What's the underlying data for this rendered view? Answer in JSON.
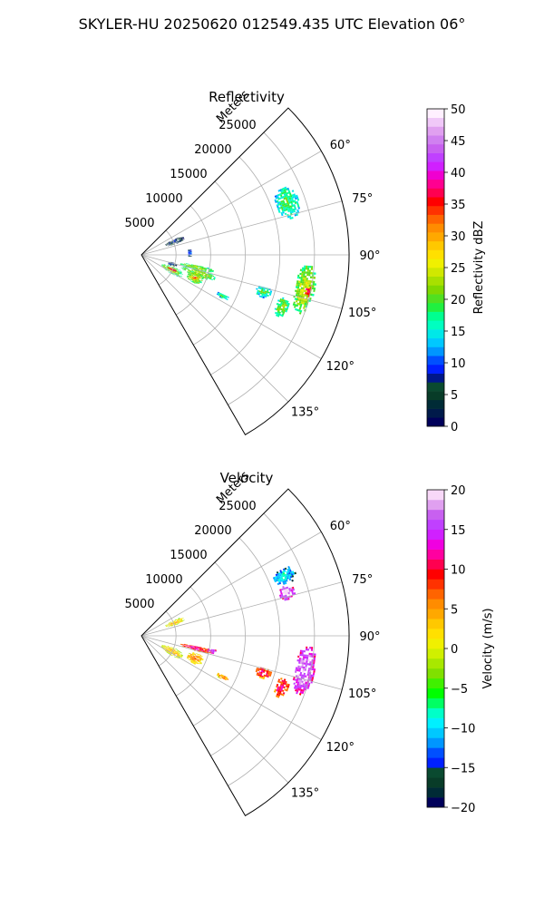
{
  "figure": {
    "suptitle": "SKYLER-HU  20250620  012549.435 UTC Elevation 06°"
  },
  "chart_data": [
    {
      "type": "heatmap",
      "projection": "polar-sector",
      "title": "Reflectivity",
      "radial_label": "Meters",
      "radial_range": [
        0,
        30000
      ],
      "radial_ticks": [
        5000,
        10000,
        15000,
        20000,
        25000
      ],
      "radial_tick_labels": [
        "5000",
        "10000",
        "15000",
        "20000",
        "25000"
      ],
      "azimuth_range_deg": [
        45,
        150
      ],
      "azimuth_ticks_deg": [
        60,
        75,
        90,
        105,
        120,
        135
      ],
      "azimuth_tick_labels": [
        "60°",
        "75°",
        "90°",
        "105°",
        "120°",
        "135°"
      ],
      "grid": true,
      "colorbar": {
        "label": "Reflectivity dBZ",
        "range": [
          0,
          50
        ],
        "ticks": [
          0,
          5,
          10,
          15,
          20,
          25,
          30,
          35,
          40,
          45,
          50
        ],
        "tick_labels": [
          "0",
          "5",
          "10",
          "15",
          "20",
          "25",
          "30",
          "35",
          "40",
          "45",
          "50"
        ],
        "colors": [
          "#00005a",
          "#001a4a",
          "#002b36",
          "#083c28",
          "#0a4a30",
          "#00178a",
          "#0020ff",
          "#0050ff",
          "#0096ff",
          "#00c8ff",
          "#00e8e8",
          "#00ffc0",
          "#00ff90",
          "#20f040",
          "#50e020",
          "#80d800",
          "#a8e000",
          "#d0e800",
          "#f0f000",
          "#ffe000",
          "#ffc800",
          "#ffa800",
          "#ff8c00",
          "#ff6400",
          "#ff3200",
          "#ff0000",
          "#ff0050",
          "#ff0090",
          "#f000d0",
          "#d020ff",
          "#c040ff",
          "#c860f0",
          "#d080f0",
          "#e0a0f0",
          "#f0c8f8",
          "#fff0ff"
        ]
      },
      "echo_regions": [
        {
          "r": [
            3500,
            6500
          ],
          "az": [
            64,
            72
          ],
          "value": 5
        },
        {
          "r": [
            6500,
            7200
          ],
          "az": [
            83,
            92
          ],
          "value": 8
        },
        {
          "r": [
            3800,
            5200
          ],
          "az": [
            103,
            110
          ],
          "value": 6
        },
        {
          "r": [
            5500,
            10500
          ],
          "az": [
            100,
            105
          ],
          "value": 19
        },
        {
          "r": [
            6000,
            11000
          ],
          "az": [
            104,
            111
          ],
          "value": 20
        },
        {
          "r": [
            3000,
            6500
          ],
          "az": [
            110,
            122
          ],
          "value": 20
        },
        {
          "r": [
            4000,
            5500
          ],
          "az": [
            113,
            117
          ],
          "value": 36
        },
        {
          "r": [
            7000,
            9500
          ],
          "az": [
            107,
            118
          ],
          "value": 21
        },
        {
          "r": [
            7800,
            8700
          ],
          "az": [
            111,
            115
          ],
          "value": 32
        },
        {
          "r": [
            20500,
            24000
          ],
          "az": [
            64,
            76
          ],
          "value": 16
        },
        {
          "r": [
            22500,
            25500
          ],
          "az": [
            93,
            110
          ],
          "value": 21
        },
        {
          "r": [
            24000,
            25000
          ],
          "az": [
            100,
            104
          ],
          "value": 35
        },
        {
          "r": [
            17000,
            19500
          ],
          "az": [
            104,
            109
          ],
          "value": 16
        },
        {
          "r": [
            12000,
            14000
          ],
          "az": [
            115,
            118
          ],
          "value": 15
        },
        {
          "r": [
            20500,
            22500
          ],
          "az": [
            106,
            114
          ],
          "value": 18
        }
      ]
    },
    {
      "type": "heatmap",
      "projection": "polar-sector",
      "title": "Velocity",
      "radial_label": "Meters",
      "radial_range": [
        0,
        30000
      ],
      "radial_ticks": [
        5000,
        10000,
        15000,
        20000,
        25000
      ],
      "radial_tick_labels": [
        "5000",
        "10000",
        "15000",
        "20000",
        "25000"
      ],
      "azimuth_range_deg": [
        45,
        150
      ],
      "azimuth_ticks_deg": [
        60,
        75,
        90,
        105,
        120,
        135
      ],
      "azimuth_tick_labels": [
        "60°",
        "75°",
        "90°",
        "105°",
        "120°",
        "135°"
      ],
      "grid": true,
      "colorbar": {
        "label": "Velocity (m/s)",
        "range": [
          -20,
          20
        ],
        "ticks": [
          -20,
          -15,
          -10,
          -5,
          0,
          5,
          10,
          15,
          20
        ],
        "tick_labels": [
          "−20",
          "−15",
          "−10",
          "−5",
          "0",
          "5",
          "10",
          "15",
          "20"
        ],
        "colors": [
          "#00005a",
          "#002b36",
          "#083c28",
          "#0a4a30",
          "#0020ff",
          "#0050ff",
          "#0096ff",
          "#00c8ff",
          "#00f0ff",
          "#00ffc8",
          "#00ff64",
          "#00ff00",
          "#40f000",
          "#80e000",
          "#a8e800",
          "#d0f000",
          "#f0f000",
          "#ffe000",
          "#ffc800",
          "#ffa800",
          "#ff8c00",
          "#ff6400",
          "#ff3200",
          "#ff0000",
          "#ff0050",
          "#ff00a0",
          "#f000e0",
          "#d020ff",
          "#c040ff",
          "#c860f0",
          "#e0a0f0",
          "#f8d8f8"
        ]
      },
      "echo_regions": [
        {
          "r": [
            3500,
            6500
          ],
          "az": [
            64,
            72
          ],
          "value": 1
        },
        {
          "r": [
            5500,
            10500
          ],
          "az": [
            100,
            105
          ],
          "value": 9
        },
        {
          "r": [
            9500,
            11000
          ],
          "az": [
            100,
            104
          ],
          "value": 13
        },
        {
          "r": [
            3000,
            6500
          ],
          "az": [
            110,
            123
          ],
          "value": 1
        },
        {
          "r": [
            7000,
            9500
          ],
          "az": [
            107,
            118
          ],
          "value": 3
        },
        {
          "r": [
            20500,
            24000
          ],
          "az": [
            64,
            70
          ],
          "value": -12
        },
        {
          "r": [
            20500,
            23000
          ],
          "az": [
            70,
            76
          ],
          "value": 15
        },
        {
          "r": [
            22500,
            25500
          ],
          "az": [
            93,
            110
          ],
          "value": 15
        },
        {
          "r": [
            17000,
            19500
          ],
          "az": [
            104,
            109
          ],
          "value": 8
        },
        {
          "r": [
            12000,
            14000
          ],
          "az": [
            115,
            118
          ],
          "value": 4
        },
        {
          "r": [
            20500,
            22500
          ],
          "az": [
            106,
            114
          ],
          "value": 8
        }
      ]
    }
  ]
}
